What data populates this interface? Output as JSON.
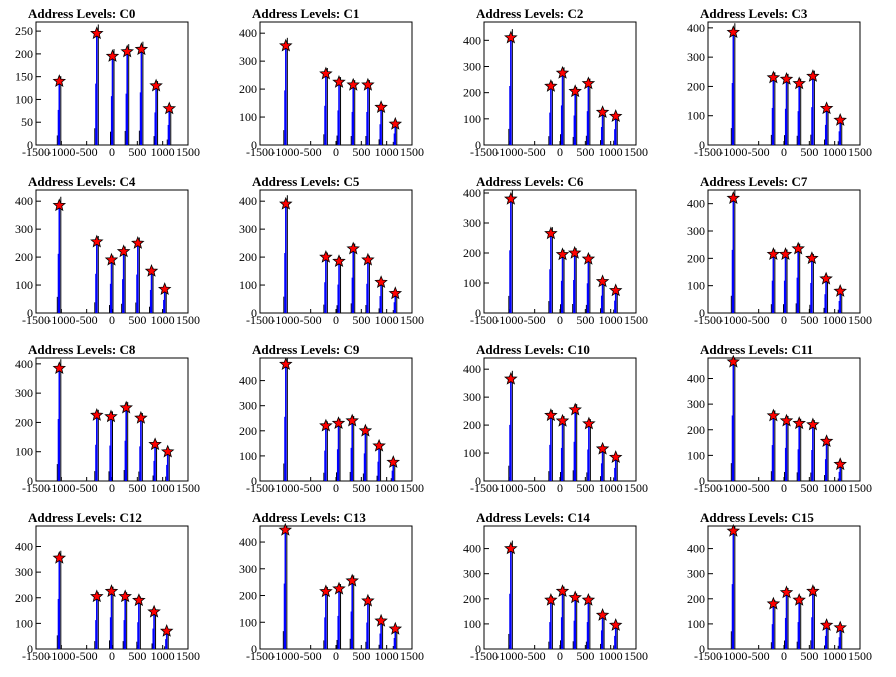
{
  "figure": {
    "title_prefix": "Address Levels: ",
    "x_ticks": [
      "-1500",
      "-1000",
      "-500",
      "0",
      "500",
      "1000",
      "1500"
    ],
    "xlim": [
      -1500,
      1500
    ],
    "colors": {
      "spike": "#0000ff",
      "outline": "#000000",
      "marker": "#ff0000"
    },
    "marker_icon": "red-star-marker"
  },
  "chart_data": [
    {
      "type": "bar",
      "title": "Address Levels: C0",
      "ylim": [
        0,
        270
      ],
      "yticks": [
        0,
        50,
        100,
        150,
        200,
        250
      ],
      "peaks": [
        {
          "x": -1040,
          "y": 140
        },
        {
          "x": -300,
          "y": 245
        },
        {
          "x": 10,
          "y": 195
        },
        {
          "x": 300,
          "y": 205
        },
        {
          "x": 580,
          "y": 210
        },
        {
          "x": 870,
          "y": 130
        },
        {
          "x": 1130,
          "y": 80
        }
      ]
    },
    {
      "type": "bar",
      "title": "Address Levels: C1",
      "ylim": [
        0,
        440
      ],
      "yticks": [
        0,
        100,
        200,
        300,
        400
      ],
      "peaks": [
        {
          "x": -990,
          "y": 355
        },
        {
          "x": -200,
          "y": 255
        },
        {
          "x": 60,
          "y": 225
        },
        {
          "x": 340,
          "y": 215
        },
        {
          "x": 630,
          "y": 215
        },
        {
          "x": 890,
          "y": 135
        },
        {
          "x": 1170,
          "y": 75
        }
      ]
    },
    {
      "type": "bar",
      "title": "Address Levels: C2",
      "ylim": [
        0,
        470
      ],
      "yticks": [
        0,
        100,
        200,
        300,
        400
      ],
      "peaks": [
        {
          "x": -970,
          "y": 410
        },
        {
          "x": -180,
          "y": 225
        },
        {
          "x": 50,
          "y": 275
        },
        {
          "x": 300,
          "y": 205
        },
        {
          "x": 560,
          "y": 235
        },
        {
          "x": 840,
          "y": 125
        },
        {
          "x": 1100,
          "y": 110
        }
      ]
    },
    {
      "type": "bar",
      "title": "Address Levels: C3",
      "ylim": [
        0,
        420
      ],
      "yticks": [
        0,
        100,
        200,
        300,
        400
      ],
      "peaks": [
        {
          "x": -1000,
          "y": 385
        },
        {
          "x": -210,
          "y": 230
        },
        {
          "x": 50,
          "y": 225
        },
        {
          "x": 300,
          "y": 210
        },
        {
          "x": 570,
          "y": 235
        },
        {
          "x": 840,
          "y": 125
        },
        {
          "x": 1110,
          "y": 85
        }
      ]
    },
    {
      "type": "bar",
      "title": "Address Levels: C4",
      "ylim": [
        0,
        440
      ],
      "yticks": [
        0,
        100,
        200,
        300,
        400
      ],
      "peaks": [
        {
          "x": -1040,
          "y": 385
        },
        {
          "x": -300,
          "y": 255
        },
        {
          "x": -10,
          "y": 190
        },
        {
          "x": 230,
          "y": 220
        },
        {
          "x": 510,
          "y": 250
        },
        {
          "x": 780,
          "y": 150
        },
        {
          "x": 1040,
          "y": 85
        }
      ]
    },
    {
      "type": "bar",
      "title": "Address Levels: C5",
      "ylim": [
        0,
        440
      ],
      "yticks": [
        0,
        100,
        200,
        300,
        400
      ],
      "peaks": [
        {
          "x": -990,
          "y": 390
        },
        {
          "x": -200,
          "y": 200
        },
        {
          "x": 60,
          "y": 185
        },
        {
          "x": 340,
          "y": 230
        },
        {
          "x": 630,
          "y": 190
        },
        {
          "x": 890,
          "y": 110
        },
        {
          "x": 1170,
          "y": 70
        }
      ]
    },
    {
      "type": "bar",
      "title": "Address Levels: C6",
      "ylim": [
        0,
        410
      ],
      "yticks": [
        0,
        100,
        200,
        300,
        400
      ],
      "peaks": [
        {
          "x": -970,
          "y": 380
        },
        {
          "x": -180,
          "y": 265
        },
        {
          "x": 50,
          "y": 195
        },
        {
          "x": 290,
          "y": 200
        },
        {
          "x": 560,
          "y": 180
        },
        {
          "x": 840,
          "y": 105
        },
        {
          "x": 1100,
          "y": 75
        }
      ]
    },
    {
      "type": "bar",
      "title": "Address Levels: C7",
      "ylim": [
        0,
        450
      ],
      "yticks": [
        0,
        100,
        200,
        300,
        400
      ],
      "peaks": [
        {
          "x": -1000,
          "y": 420
        },
        {
          "x": -210,
          "y": 215
        },
        {
          "x": 30,
          "y": 215
        },
        {
          "x": 280,
          "y": 235
        },
        {
          "x": 550,
          "y": 200
        },
        {
          "x": 830,
          "y": 125
        },
        {
          "x": 1110,
          "y": 80
        }
      ]
    },
    {
      "type": "bar",
      "title": "Address Levels: C8",
      "ylim": [
        0,
        420
      ],
      "yticks": [
        0,
        100,
        200,
        300,
        400
      ],
      "peaks": [
        {
          "x": -1040,
          "y": 385
        },
        {
          "x": -300,
          "y": 225
        },
        {
          "x": -20,
          "y": 220
        },
        {
          "x": 280,
          "y": 250
        },
        {
          "x": 570,
          "y": 215
        },
        {
          "x": 850,
          "y": 125
        },
        {
          "x": 1100,
          "y": 100
        }
      ]
    },
    {
      "type": "bar",
      "title": "Address Levels: C9",
      "ylim": [
        0,
        490
      ],
      "yticks": [
        0,
        100,
        200,
        300,
        400
      ],
      "peaks": [
        {
          "x": -990,
          "y": 465
        },
        {
          "x": -200,
          "y": 220
        },
        {
          "x": 50,
          "y": 230
        },
        {
          "x": 320,
          "y": 240
        },
        {
          "x": 580,
          "y": 200
        },
        {
          "x": 850,
          "y": 140
        },
        {
          "x": 1130,
          "y": 75
        }
      ]
    },
    {
      "type": "bar",
      "title": "Address Levels: C10",
      "ylim": [
        0,
        440
      ],
      "yticks": [
        0,
        100,
        200,
        300,
        400
      ],
      "peaks": [
        {
          "x": -970,
          "y": 365
        },
        {
          "x": -180,
          "y": 235
        },
        {
          "x": 50,
          "y": 215
        },
        {
          "x": 300,
          "y": 255
        },
        {
          "x": 570,
          "y": 205
        },
        {
          "x": 840,
          "y": 115
        },
        {
          "x": 1100,
          "y": 85
        }
      ]
    },
    {
      "type": "bar",
      "title": "Address Levels: C11",
      "ylim": [
        0,
        480
      ],
      "yticks": [
        0,
        100,
        200,
        300,
        400
      ],
      "peaks": [
        {
          "x": -1000,
          "y": 465
        },
        {
          "x": -210,
          "y": 255
        },
        {
          "x": 50,
          "y": 235
        },
        {
          "x": 300,
          "y": 225
        },
        {
          "x": 570,
          "y": 220
        },
        {
          "x": 840,
          "y": 155
        },
        {
          "x": 1110,
          "y": 65
        }
      ]
    },
    {
      "type": "bar",
      "title": "Address Levels: C12",
      "ylim": [
        0,
        480
      ],
      "yticks": [
        0,
        100,
        200,
        300,
        400
      ],
      "peaks": [
        {
          "x": -1040,
          "y": 355
        },
        {
          "x": -300,
          "y": 205
        },
        {
          "x": -10,
          "y": 225
        },
        {
          "x": 260,
          "y": 205
        },
        {
          "x": 530,
          "y": 190
        },
        {
          "x": 830,
          "y": 145
        },
        {
          "x": 1080,
          "y": 70
        }
      ]
    },
    {
      "type": "bar",
      "title": "Address Levels: C13",
      "ylim": [
        0,
        460
      ],
      "yticks": [
        0,
        100,
        200,
        300,
        400
      ],
      "peaks": [
        {
          "x": -1000,
          "y": 445
        },
        {
          "x": -200,
          "y": 215
        },
        {
          "x": 60,
          "y": 225
        },
        {
          "x": 320,
          "y": 255
        },
        {
          "x": 630,
          "y": 180
        },
        {
          "x": 890,
          "y": 105
        },
        {
          "x": 1170,
          "y": 75
        }
      ]
    },
    {
      "type": "bar",
      "title": "Address Levels: C14",
      "ylim": [
        0,
        490
      ],
      "yticks": [
        0,
        100,
        200,
        300,
        400
      ],
      "peaks": [
        {
          "x": -970,
          "y": 400
        },
        {
          "x": -180,
          "y": 195
        },
        {
          "x": 50,
          "y": 230
        },
        {
          "x": 300,
          "y": 205
        },
        {
          "x": 560,
          "y": 195
        },
        {
          "x": 840,
          "y": 135
        },
        {
          "x": 1100,
          "y": 95
        }
      ]
    },
    {
      "type": "bar",
      "title": "Address Levels: C15",
      "ylim": [
        0,
        490
      ],
      "yticks": [
        0,
        100,
        200,
        300,
        400
      ],
      "peaks": [
        {
          "x": -1000,
          "y": 470
        },
        {
          "x": -210,
          "y": 180
        },
        {
          "x": 50,
          "y": 225
        },
        {
          "x": 300,
          "y": 195
        },
        {
          "x": 570,
          "y": 230
        },
        {
          "x": 840,
          "y": 95
        },
        {
          "x": 1110,
          "y": 85
        }
      ]
    }
  ]
}
